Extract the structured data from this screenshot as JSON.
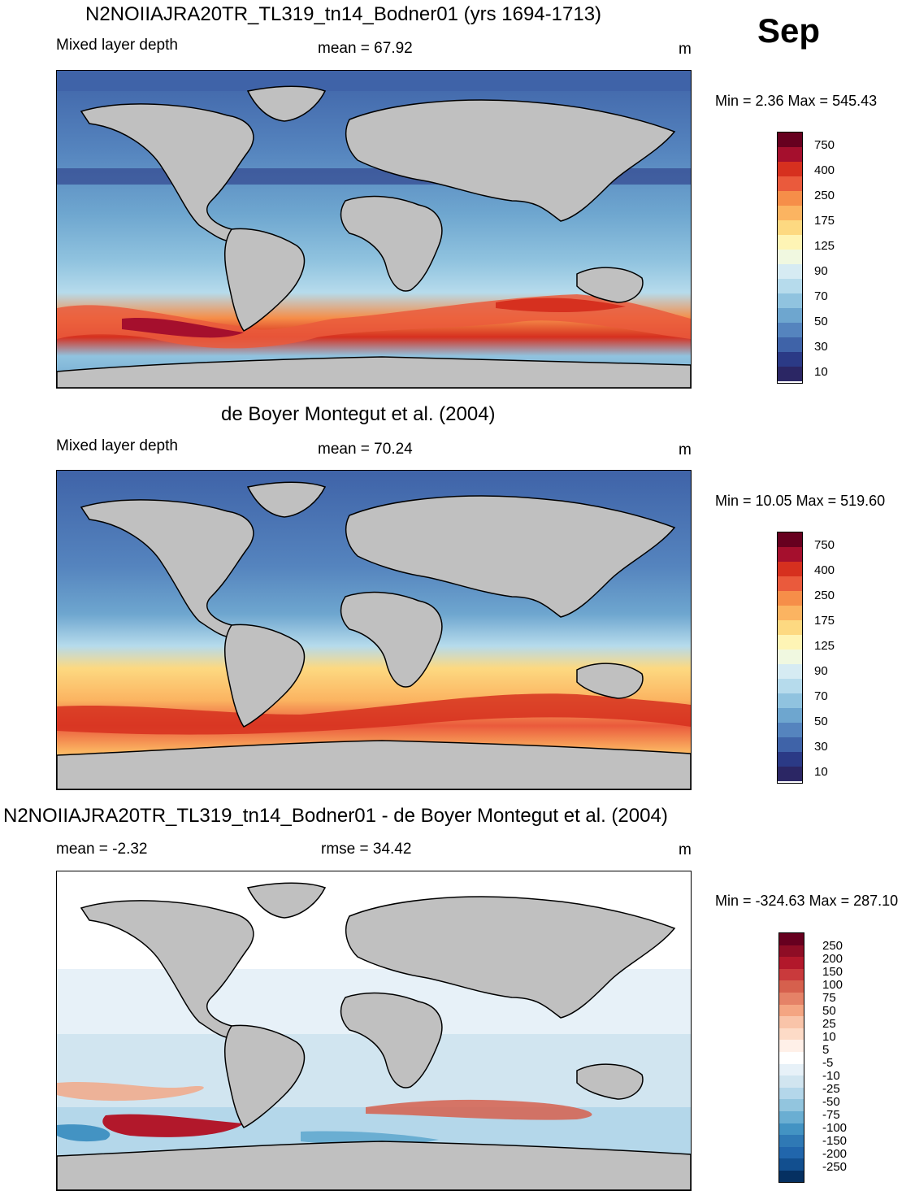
{
  "month": "Sep",
  "panels": [
    {
      "title": "N2NOIIAJRA20TR_TL319_tn14_Bodner01 (yrs 1694-1713)",
      "left_label": "Mixed layer depth",
      "center_label": "mean =  67.92",
      "units": "m",
      "minmax": "Min =   2.36 Max = 545.43",
      "colorbar_labels": [
        "750",
        "400",
        "250",
        "175",
        "125",
        "90",
        "70",
        "50",
        "30",
        "10"
      ],
      "colors": [
        "#67001f",
        "#a50f2d",
        "#d6301f",
        "#ea5a3c",
        "#f68e49",
        "#fbb461",
        "#fdd981",
        "#fef4b5",
        "#f0f8e0",
        "#d6ebf3",
        "#b6dbec",
        "#90c3df",
        "#6ea6cf",
        "#5584be",
        "#3f63a8",
        "#2b3a86",
        "#2b2664"
      ]
    },
    {
      "title": "de Boyer Montegut et al. (2004)",
      "left_label": "Mixed layer depth",
      "center_label": "mean =  70.24",
      "units": "m",
      "minmax": "Min =  10.05 Max = 519.60",
      "colorbar_labels": [
        "750",
        "400",
        "250",
        "175",
        "125",
        "90",
        "70",
        "50",
        "30",
        "10"
      ]
    },
    {
      "title": "N2NOIIAJRA20TR_TL319_tn14_Bodner01 - de Boyer Montegut et al. (2004)",
      "left_label": "mean =  -2.32",
      "center_label": "rmse =  34.42",
      "units": "m",
      "minmax": "Min = -324.63 Max = 287.10",
      "colorbar_labels": [
        "250",
        "200",
        "150",
        "100",
        "75",
        "50",
        "25",
        "10",
        "5",
        "-5",
        "-10",
        "-25",
        "-50",
        "-75",
        "-100",
        "-150",
        "-200",
        "-250"
      ],
      "colors": [
        "#67001f",
        "#8e0d25",
        "#b2182b",
        "#c93a3c",
        "#d6604d",
        "#e58267",
        "#f4a582",
        "#f9c4a9",
        "#fddbc7",
        "#fff0e8",
        "#ffffff",
        "#e7f1f8",
        "#d1e5f0",
        "#b4d7ea",
        "#92c5de",
        "#6aaed2",
        "#4393c3",
        "#2f79b5",
        "#2166ac",
        "#124f8f",
        "#053061"
      ]
    }
  ]
}
